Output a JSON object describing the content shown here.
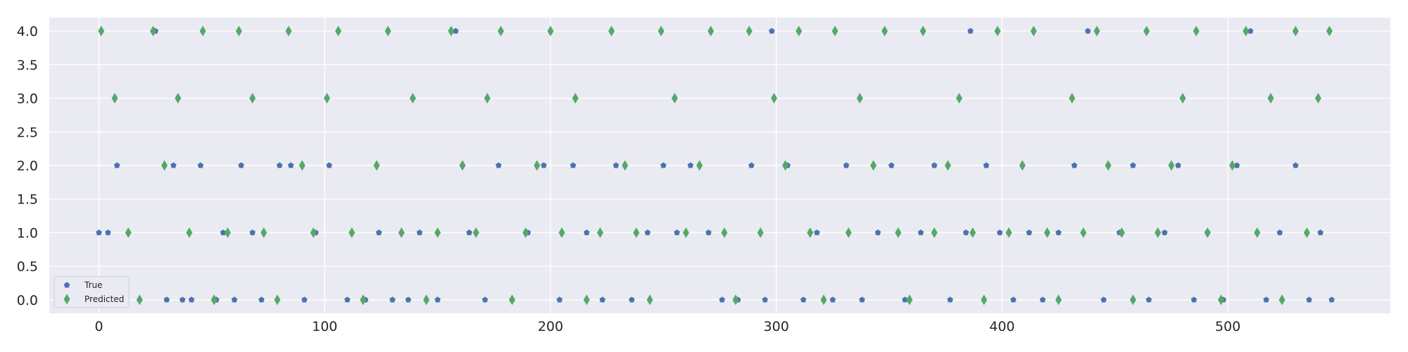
{
  "chart_data": {
    "type": "scatter",
    "title": "",
    "xlabel": "",
    "ylabel": "",
    "xlim": [
      -22,
      572
    ],
    "ylim": [
      -0.2,
      4.2
    ],
    "x_ticks": [
      0,
      100,
      200,
      300,
      400,
      500
    ],
    "y_ticks": [
      0.0,
      0.5,
      1.0,
      1.5,
      2.0,
      2.5,
      3.0,
      3.5,
      4.0
    ],
    "x_tick_labels": [
      "0",
      "100",
      "200",
      "300",
      "400",
      "500"
    ],
    "y_tick_labels": [
      "0.0",
      "0.5",
      "1.0",
      "1.5",
      "2.0",
      "2.5",
      "3.0",
      "3.5",
      "4.0"
    ],
    "grid": true,
    "legend_position": "lower-left",
    "colors": {
      "background": "#eaeaf2",
      "grid": "#ffffff",
      "true": "#4c72b0",
      "predicted": "#55a868"
    },
    "series": [
      {
        "name": "True",
        "marker": "pentagon",
        "points": [
          [
            0,
            1
          ],
          [
            4,
            1
          ],
          [
            8,
            2
          ],
          [
            11,
            0
          ],
          [
            25,
            4
          ],
          [
            30,
            0
          ],
          [
            33,
            2
          ],
          [
            37,
            0
          ],
          [
            41,
            0
          ],
          [
            45,
            2
          ],
          [
            52,
            0
          ],
          [
            55,
            1
          ],
          [
            60,
            0
          ],
          [
            63,
            2
          ],
          [
            68,
            1
          ],
          [
            72,
            0
          ],
          [
            80,
            2
          ],
          [
            85,
            2
          ],
          [
            91,
            0
          ],
          [
            96,
            1
          ],
          [
            102,
            2
          ],
          [
            110,
            0
          ],
          [
            118,
            0
          ],
          [
            124,
            1
          ],
          [
            130,
            0
          ],
          [
            137,
            0
          ],
          [
            142,
            1
          ],
          [
            150,
            0
          ],
          [
            158,
            4
          ],
          [
            164,
            1
          ],
          [
            171,
            0
          ],
          [
            177,
            2
          ],
          [
            183,
            0
          ],
          [
            190,
            1
          ],
          [
            197,
            2
          ],
          [
            204,
            0
          ],
          [
            210,
            2
          ],
          [
            216,
            1
          ],
          [
            223,
            0
          ],
          [
            229,
            2
          ],
          [
            236,
            0
          ],
          [
            243,
            1
          ],
          [
            250,
            2
          ],
          [
            256,
            1
          ],
          [
            262,
            2
          ],
          [
            270,
            1
          ],
          [
            276,
            0
          ],
          [
            283,
            0
          ],
          [
            289,
            2
          ],
          [
            295,
            0
          ],
          [
            298,
            4
          ],
          [
            305,
            2
          ],
          [
            312,
            0
          ],
          [
            318,
            1
          ],
          [
            325,
            0
          ],
          [
            331,
            2
          ],
          [
            338,
            0
          ],
          [
            345,
            1
          ],
          [
            351,
            2
          ],
          [
            357,
            0
          ],
          [
            364,
            1
          ],
          [
            370,
            2
          ],
          [
            377,
            0
          ],
          [
            384,
            1
          ],
          [
            386,
            4
          ],
          [
            393,
            2
          ],
          [
            399,
            1
          ],
          [
            405,
            0
          ],
          [
            412,
            1
          ],
          [
            418,
            0
          ],
          [
            425,
            1
          ],
          [
            432,
            2
          ],
          [
            438,
            4
          ],
          [
            445,
            0
          ],
          [
            452,
            1
          ],
          [
            458,
            2
          ],
          [
            465,
            0
          ],
          [
            472,
            1
          ],
          [
            478,
            2
          ],
          [
            485,
            0
          ],
          [
            491,
            1
          ],
          [
            498,
            0
          ],
          [
            504,
            2
          ],
          [
            510,
            4
          ],
          [
            517,
            0
          ],
          [
            523,
            1
          ],
          [
            530,
            2
          ],
          [
            536,
            0
          ],
          [
            541,
            1
          ],
          [
            546,
            0
          ]
        ]
      },
      {
        "name": "Predicted",
        "marker": "thin_diamond",
        "points": [
          [
            1,
            4
          ],
          [
            7,
            3
          ],
          [
            13,
            1
          ],
          [
            18,
            0
          ],
          [
            24,
            4
          ],
          [
            29,
            2
          ],
          [
            35,
            3
          ],
          [
            40,
            1
          ],
          [
            46,
            4
          ],
          [
            51,
            0
          ],
          [
            57,
            1
          ],
          [
            62,
            4
          ],
          [
            68,
            3
          ],
          [
            73,
            1
          ],
          [
            79,
            0
          ],
          [
            84,
            4
          ],
          [
            90,
            2
          ],
          [
            95,
            1
          ],
          [
            101,
            3
          ],
          [
            106,
            4
          ],
          [
            112,
            1
          ],
          [
            117,
            0
          ],
          [
            123,
            2
          ],
          [
            128,
            4
          ],
          [
            134,
            1
          ],
          [
            139,
            3
          ],
          [
            145,
            0
          ],
          [
            150,
            1
          ],
          [
            156,
            4
          ],
          [
            161,
            2
          ],
          [
            167,
            1
          ],
          [
            172,
            3
          ],
          [
            178,
            4
          ],
          [
            183,
            0
          ],
          [
            189,
            1
          ],
          [
            194,
            2
          ],
          [
            200,
            4
          ],
          [
            205,
            1
          ],
          [
            211,
            3
          ],
          [
            216,
            0
          ],
          [
            222,
            1
          ],
          [
            227,
            4
          ],
          [
            233,
            2
          ],
          [
            238,
            1
          ],
          [
            244,
            0
          ],
          [
            249,
            4
          ],
          [
            255,
            3
          ],
          [
            260,
            1
          ],
          [
            266,
            2
          ],
          [
            271,
            4
          ],
          [
            277,
            1
          ],
          [
            282,
            0
          ],
          [
            288,
            4
          ],
          [
            293,
            1
          ],
          [
            299,
            3
          ],
          [
            304,
            2
          ],
          [
            310,
            4
          ],
          [
            315,
            1
          ],
          [
            321,
            0
          ],
          [
            326,
            4
          ],
          [
            332,
            1
          ],
          [
            337,
            3
          ],
          [
            343,
            2
          ],
          [
            348,
            4
          ],
          [
            354,
            1
          ],
          [
            359,
            0
          ],
          [
            365,
            4
          ],
          [
            370,
            1
          ],
          [
            376,
            2
          ],
          [
            381,
            3
          ],
          [
            387,
            1
          ],
          [
            392,
            0
          ],
          [
            398,
            4
          ],
          [
            403,
            1
          ],
          [
            409,
            2
          ],
          [
            414,
            4
          ],
          [
            420,
            1
          ],
          [
            425,
            0
          ],
          [
            431,
            3
          ],
          [
            436,
            1
          ],
          [
            442,
            4
          ],
          [
            447,
            2
          ],
          [
            453,
            1
          ],
          [
            458,
            0
          ],
          [
            464,
            4
          ],
          [
            469,
            1
          ],
          [
            475,
            2
          ],
          [
            480,
            3
          ],
          [
            486,
            4
          ],
          [
            491,
            1
          ],
          [
            497,
            0
          ],
          [
            502,
            2
          ],
          [
            508,
            4
          ],
          [
            513,
            1
          ],
          [
            519,
            3
          ],
          [
            524,
            0
          ],
          [
            530,
            4
          ],
          [
            535,
            1
          ],
          [
            540,
            3
          ],
          [
            545,
            4
          ]
        ]
      }
    ],
    "legend": [
      {
        "label": "True",
        "series": 0
      },
      {
        "label": "Predicted",
        "series": 1
      }
    ]
  }
}
